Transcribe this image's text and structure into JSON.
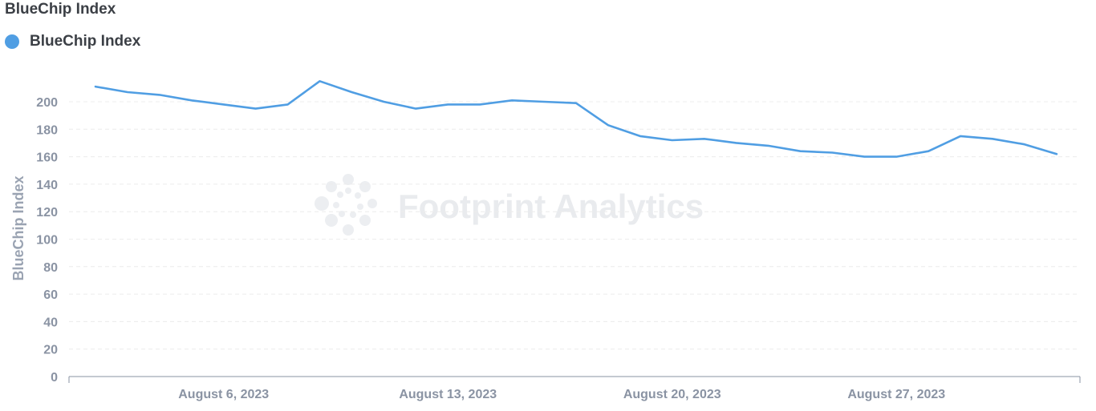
{
  "card": {
    "title": "BlueChip Index"
  },
  "watermark": {
    "text": "Footprint Analytics"
  },
  "colors": {
    "series": "#509EE3",
    "grid": "#ececec",
    "axis": "#8a93a3"
  },
  "chart_data": {
    "type": "line",
    "ylabel": "BlueChip Index",
    "xlabel": "",
    "ylim": [
      0,
      200
    ],
    "yticks": [
      0,
      20,
      40,
      60,
      80,
      100,
      120,
      140,
      160,
      180,
      200
    ],
    "xticks": [
      "August 6, 2023",
      "August 13, 2023",
      "August 20, 2023",
      "August 27, 2023"
    ],
    "grid": true,
    "legend": "top-left",
    "series": [
      {
        "name": "BlueChip Index",
        "color": "#509EE3",
        "x": [
          "2023-08-02",
          "2023-08-03",
          "2023-08-04",
          "2023-08-05",
          "2023-08-06",
          "2023-08-07",
          "2023-08-08",
          "2023-08-09",
          "2023-08-10",
          "2023-08-11",
          "2023-08-12",
          "2023-08-13",
          "2023-08-14",
          "2023-08-15",
          "2023-08-16",
          "2023-08-17",
          "2023-08-18",
          "2023-08-19",
          "2023-08-20",
          "2023-08-21",
          "2023-08-22",
          "2023-08-23",
          "2023-08-24",
          "2023-08-25",
          "2023-08-26",
          "2023-08-27",
          "2023-08-28",
          "2023-08-29",
          "2023-08-30",
          "2023-08-31",
          "2023-09-01"
        ],
        "values": [
          211,
          207,
          205,
          201,
          198,
          195,
          198,
          215,
          207,
          200,
          195,
          198,
          198,
          201,
          200,
          199,
          183,
          175,
          172,
          173,
          170,
          168,
          164,
          163,
          160,
          160,
          164,
          175,
          173,
          169,
          162
        ]
      }
    ]
  }
}
